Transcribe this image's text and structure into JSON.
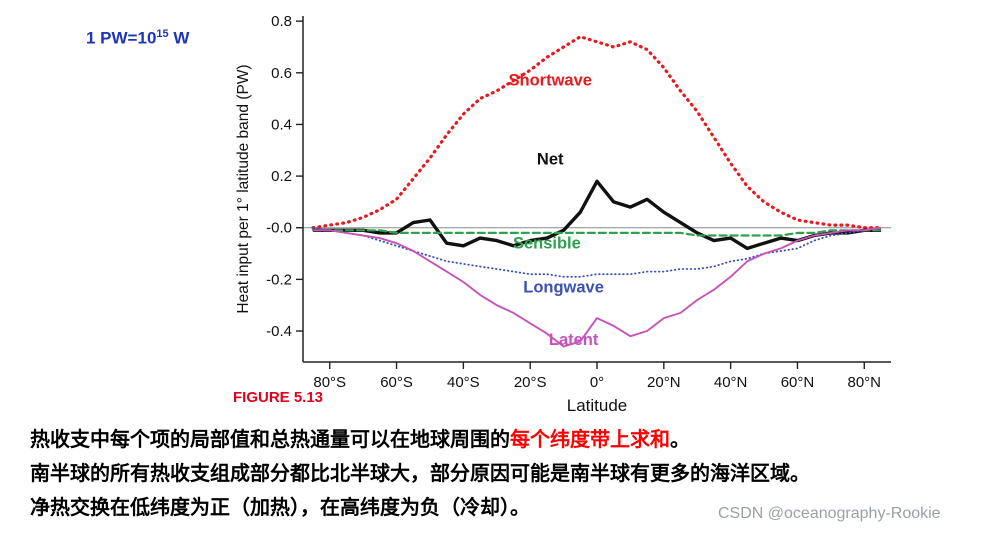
{
  "annotations": {
    "pw_base": "1 PW=10",
    "pw_exp": "15",
    "pw_unit": " W",
    "figure_caption": "FIGURE 5.13",
    "watermark": "CSDN @oceanography-Rookie"
  },
  "captions": {
    "line1_black": "热收支中每个项的局部值和总热通量可以在地球周围的",
    "line1_red": "每个纬度带上求和",
    "line1_tail": "。",
    "line2": "南半球的所有热收支组成部分都比北半球大，部分原因可能是南半球有更多的海洋区域。",
    "line3": "净热交换在低纬度为正（加热），在高纬度为负（冷却）。"
  },
  "chart_data": {
    "type": "line",
    "title": "",
    "xlabel": "Latitude",
    "ylabel": "Heat input per 1° latitude band (PW)",
    "xlim": [
      -88,
      88
    ],
    "ylim": [
      -0.52,
      0.82
    ],
    "grid": false,
    "zero_line": true,
    "x_ticks": [
      {
        "v": -80,
        "label": "80°S"
      },
      {
        "v": -60,
        "label": "60°S"
      },
      {
        "v": -40,
        "label": "40°S"
      },
      {
        "v": -20,
        "label": "20°S"
      },
      {
        "v": 0,
        "label": "0°"
      },
      {
        "v": 20,
        "label": "20°N"
      },
      {
        "v": 40,
        "label": "40°N"
      },
      {
        "v": 60,
        "label": "60°N"
      },
      {
        "v": 80,
        "label": "80°N"
      }
    ],
    "y_ticks": [
      {
        "v": 0.8,
        "label": "0.8"
      },
      {
        "v": 0.6,
        "label": "0.6"
      },
      {
        "v": 0.4,
        "label": "0.4"
      },
      {
        "v": 0.2,
        "label": "0.2"
      },
      {
        "v": 0.0,
        "label": "-0.0"
      },
      {
        "v": -0.2,
        "label": "-0.2"
      },
      {
        "v": -0.4,
        "label": "-0.4"
      }
    ],
    "x": [
      -85,
      -80,
      -75,
      -70,
      -65,
      -60,
      -55,
      -50,
      -45,
      -40,
      -35,
      -30,
      -25,
      -20,
      -15,
      -10,
      -5,
      0,
      5,
      10,
      15,
      20,
      25,
      30,
      35,
      40,
      45,
      50,
      55,
      60,
      65,
      70,
      75,
      80,
      85
    ],
    "series": [
      {
        "name": "Shortwave",
        "color": "#e8191f",
        "style": "dotted",
        "width": 3.2,
        "values": [
          0.0,
          0.01,
          0.02,
          0.04,
          0.07,
          0.11,
          0.19,
          0.27,
          0.36,
          0.44,
          0.5,
          0.53,
          0.57,
          0.61,
          0.66,
          0.7,
          0.74,
          0.72,
          0.7,
          0.72,
          0.69,
          0.62,
          0.53,
          0.45,
          0.35,
          0.25,
          0.16,
          0.1,
          0.06,
          0.03,
          0.02,
          0.01,
          0.01,
          0.0,
          0.0
        ]
      },
      {
        "name": "Net",
        "color": "#111111",
        "style": "solid",
        "width": 3.4,
        "values": [
          -0.01,
          -0.01,
          -0.01,
          -0.01,
          -0.02,
          -0.02,
          0.02,
          0.03,
          -0.06,
          -0.07,
          -0.04,
          -0.05,
          -0.07,
          -0.05,
          -0.04,
          -0.01,
          0.06,
          0.18,
          0.1,
          0.08,
          0.11,
          0.06,
          0.02,
          -0.02,
          -0.05,
          -0.04,
          -0.08,
          -0.06,
          -0.04,
          -0.05,
          -0.03,
          -0.02,
          -0.02,
          -0.01,
          -0.01
        ]
      },
      {
        "name": "Sensible",
        "color": "#2fa14e",
        "style": "dashed",
        "width": 2.2,
        "values": [
          -0.01,
          -0.01,
          -0.01,
          -0.01,
          -0.01,
          -0.02,
          -0.02,
          -0.02,
          -0.02,
          -0.02,
          -0.02,
          -0.02,
          -0.02,
          -0.02,
          -0.02,
          -0.02,
          -0.02,
          -0.02,
          -0.02,
          -0.02,
          -0.02,
          -0.02,
          -0.02,
          -0.03,
          -0.03,
          -0.03,
          -0.03,
          -0.03,
          -0.03,
          -0.02,
          -0.02,
          -0.01,
          -0.01,
          -0.01,
          -0.01
        ]
      },
      {
        "name": "Longwave",
        "color": "#3c50b4",
        "style": "fine-dotted",
        "width": 1.8,
        "values": [
          0.0,
          -0.01,
          -0.02,
          -0.03,
          -0.05,
          -0.07,
          -0.09,
          -0.11,
          -0.13,
          -0.14,
          -0.15,
          -0.16,
          -0.17,
          -0.18,
          -0.18,
          -0.19,
          -0.19,
          -0.18,
          -0.18,
          -0.18,
          -0.17,
          -0.17,
          -0.16,
          -0.16,
          -0.15,
          -0.13,
          -0.12,
          -0.1,
          -0.09,
          -0.08,
          -0.05,
          -0.03,
          -0.02,
          -0.01,
          0.0
        ]
      },
      {
        "name": "Latent",
        "color": "#c653b8",
        "style": "solid",
        "width": 1.9,
        "values": [
          -0.01,
          -0.01,
          -0.02,
          -0.03,
          -0.04,
          -0.06,
          -0.09,
          -0.13,
          -0.17,
          -0.21,
          -0.26,
          -0.3,
          -0.33,
          -0.37,
          -0.41,
          -0.46,
          -0.44,
          -0.35,
          -0.38,
          -0.42,
          -0.4,
          -0.35,
          -0.33,
          -0.28,
          -0.24,
          -0.19,
          -0.13,
          -0.1,
          -0.08,
          -0.05,
          -0.03,
          -0.02,
          -0.01,
          -0.01,
          0.0
        ]
      }
    ],
    "labels": [
      {
        "text": "Shortwave",
        "x": -14,
        "y": 0.55,
        "color": "#e8191f"
      },
      {
        "text": "Net",
        "x": -14,
        "y": 0.245,
        "color": "#111111"
      },
      {
        "text": "Sensible",
        "x": -15,
        "y": -0.08,
        "color": "#2fa14e"
      },
      {
        "text": "Longwave",
        "x": -10,
        "y": -0.25,
        "color": "#3c50b4"
      },
      {
        "text": "Latent",
        "x": -7,
        "y": -0.455,
        "color": "#c653b8"
      }
    ]
  }
}
